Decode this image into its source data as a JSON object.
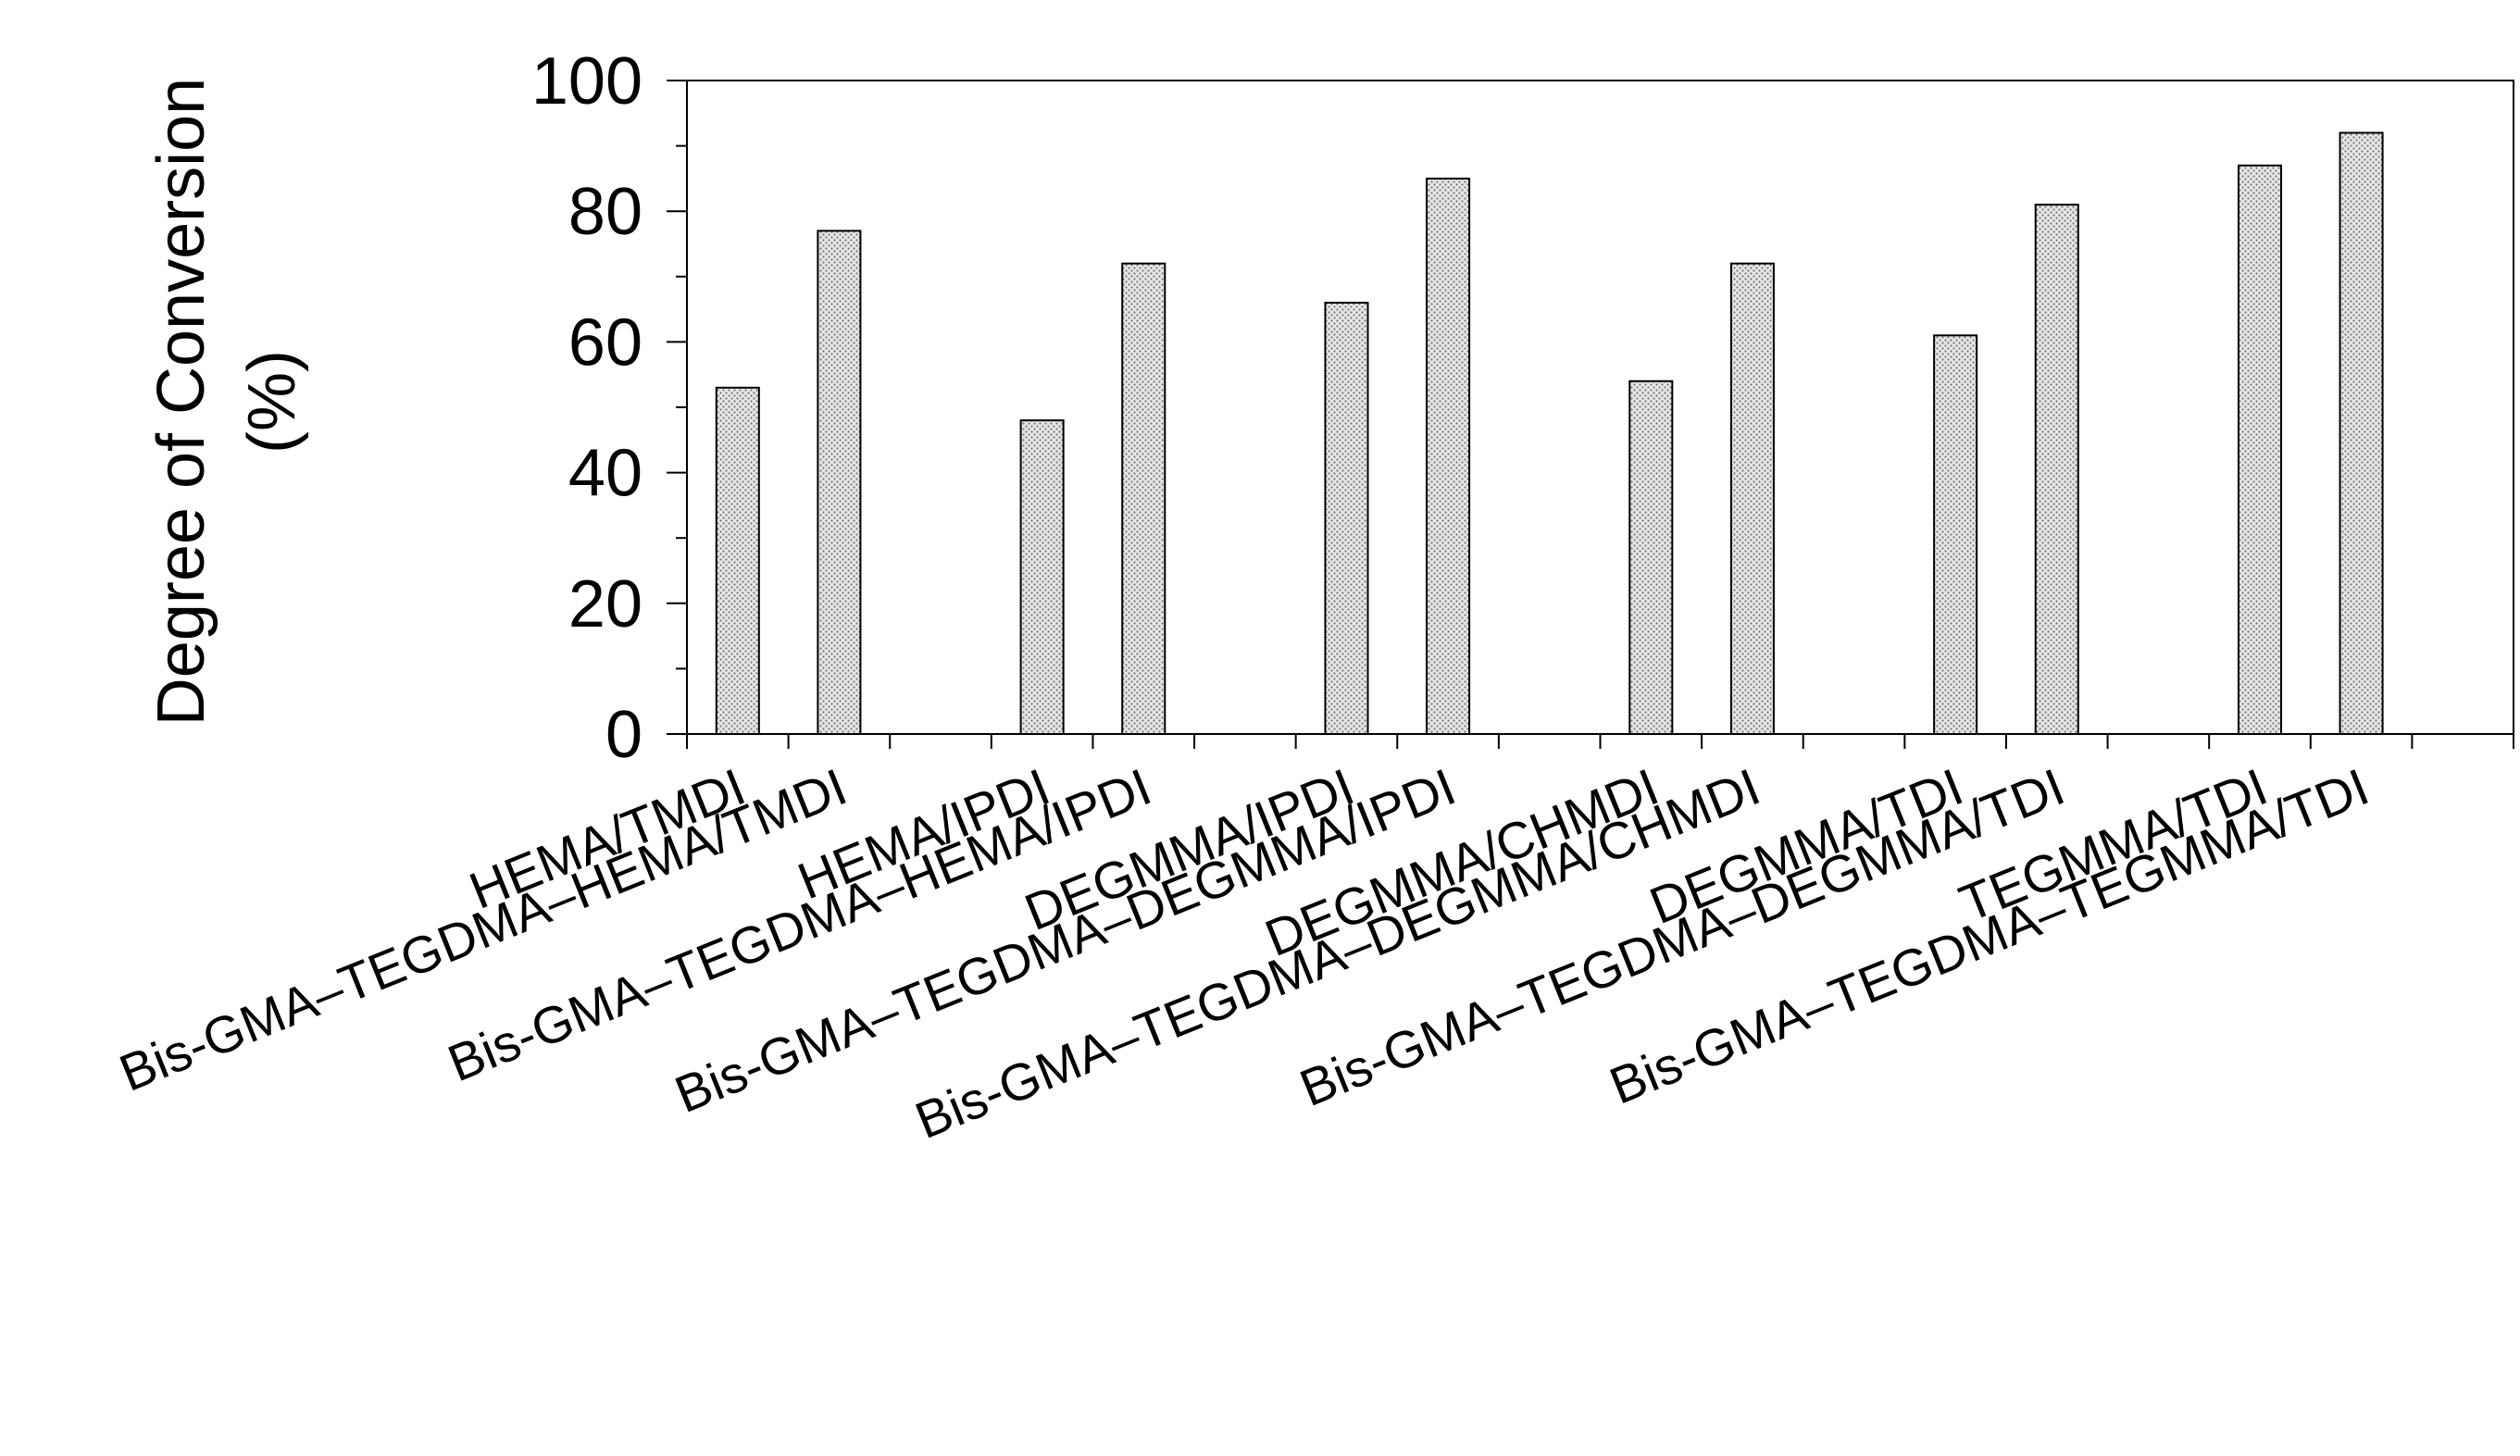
{
  "chart_data": {
    "type": "bar",
    "ylabel_lines": [
      "Degree of Conversion",
      "(%)"
    ],
    "ylim": [
      0,
      100
    ],
    "yticks": [
      0,
      20,
      40,
      60,
      80,
      100
    ],
    "grid": false,
    "categories": [
      "HEMA/TMDI",
      "Bis-GMA–TEGDMA–HEMA/TMDI",
      "HEMA/IPDI",
      "Bis-GMA–TEGDMA–HEMA/IPDI",
      "DEGMMA/IPDI",
      "Bis-GMA–TEGDMA–DEGMMA/IPDI",
      "DEGMMA/CHMDI",
      "Bis-GMA–TEGDMA–DEGMMA/CHMDI",
      "DEGMMA/TDI",
      "Bis-GMA–TEGDMA–DEGMMA/TDI",
      "TEGMMA/TDI",
      "Bis-GMA–TEGDMA–TEGMMA/TDI"
    ],
    "values": [
      53,
      77,
      48,
      72,
      66,
      85,
      54,
      72,
      61,
      81,
      87,
      92
    ],
    "bar_color": "#c8c8c8",
    "bar_pattern": "dotted",
    "edge_color": "#000000"
  }
}
